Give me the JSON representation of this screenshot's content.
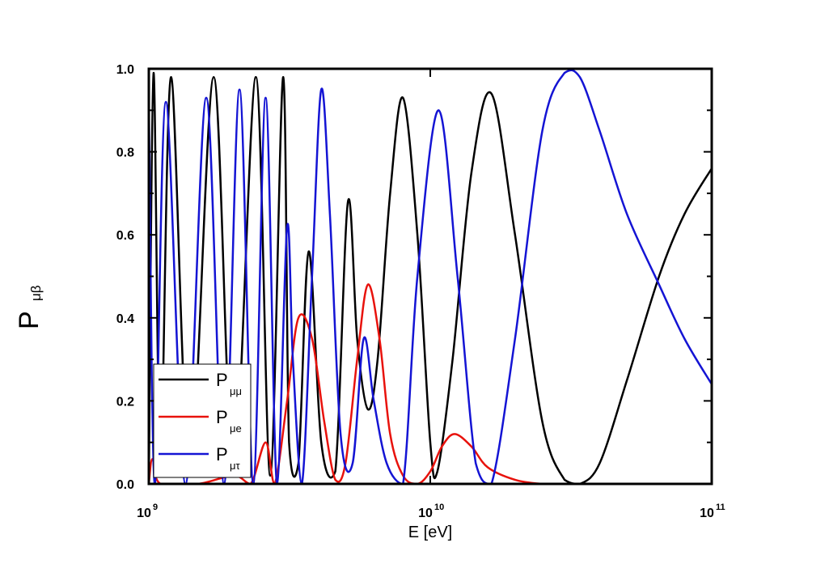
{
  "chart_data": {
    "type": "line",
    "title": "",
    "xlabel": "E [eV]",
    "ylabel": {
      "main": "P",
      "sub": "μβ"
    },
    "xscale": "log",
    "xlim": [
      1000000000.0,
      100000000000.0
    ],
    "ylim": [
      0,
      1
    ],
    "x_ticks": [
      {
        "value": 1000000000.0,
        "base": "10",
        "exp": "9"
      },
      {
        "value": 10000000000.0,
        "base": "10",
        "exp": "10"
      },
      {
        "value": 100000000000.0,
        "base": "10",
        "exp": "11"
      }
    ],
    "y_ticks": [
      {
        "value": 0.0,
        "label": "0.0"
      },
      {
        "value": 0.2,
        "label": "0.2"
      },
      {
        "value": 0.4,
        "label": "0.4"
      },
      {
        "value": 0.6,
        "label": "0.6"
      },
      {
        "value": 0.8,
        "label": "0.8"
      },
      {
        "value": 1.0,
        "label": "1.0"
      }
    ],
    "grid": false,
    "legend_position": "bottom-left",
    "series": [
      {
        "name": {
          "main": "P",
          "sub": "μμ"
        },
        "color": "#000000",
        "x": [
          1000000000.0,
          1040000000.0,
          1100000000.0,
          1200000000.0,
          1400000000.0,
          1700000000.0,
          2000000000.0,
          2400000000.0,
          2700000000.0,
          3000000000.0,
          3150000000.0,
          3400000000.0,
          3700000000.0,
          4100000000.0,
          4600000000.0,
          5100000000.0,
          5500000000.0,
          6000000000.0,
          6500000000.0,
          7200000000.0,
          8000000000.0,
          9000000000.0,
          10000000000.0,
          10600000000.0,
          12000000000.0,
          14000000000.0,
          16500000000.0,
          20000000000.0,
          25000000000.0,
          30000000000.0,
          34000000000.0,
          40000000000.0,
          50000000000.0,
          65000000000.0,
          80000000000.0,
          100000000000.0
        ],
        "y": [
          0.0,
          0.99,
          0.05,
          0.98,
          0.02,
          0.98,
          0.02,
          0.98,
          0.02,
          0.98,
          0.1,
          0.05,
          0.56,
          0.1,
          0.03,
          0.68,
          0.35,
          0.18,
          0.3,
          0.7,
          0.93,
          0.6,
          0.1,
          0.03,
          0.3,
          0.75,
          0.94,
          0.6,
          0.15,
          0.01,
          0.0,
          0.05,
          0.25,
          0.5,
          0.65,
          0.76
        ]
      },
      {
        "name": {
          "main": "P",
          "sub": "μe"
        },
        "color": "#e8120c",
        "x": [
          1000000000.0,
          1030000000.0,
          1100000000.0,
          1500000000.0,
          2000000000.0,
          2300000000.0,
          2600000000.0,
          2800000000.0,
          3100000000.0,
          3400000000.0,
          3800000000.0,
          4200000000.0,
          4600000000.0,
          5000000000.0,
          5500000000.0,
          6000000000.0,
          6600000000.0,
          7200000000.0,
          8000000000.0,
          9000000000.0,
          10000000000.0,
          11000000000.0,
          12200000000.0,
          14000000000.0,
          16000000000.0,
          20000000000.0,
          25000000000.0,
          30000000000.0,
          40000000000.0,
          60000000000.0,
          100000000000.0
        ],
        "y": [
          0.0,
          0.06,
          0.0,
          0.0,
          0.02,
          0.0,
          0.1,
          0.0,
          0.2,
          0.4,
          0.35,
          0.15,
          0.01,
          0.05,
          0.3,
          0.48,
          0.35,
          0.12,
          0.02,
          0.0,
          0.03,
          0.09,
          0.12,
          0.09,
          0.04,
          0.01,
          0.0,
          0.0,
          0.0,
          0.0,
          0.0
        ]
      },
      {
        "name": {
          "main": "P",
          "sub": "μτ"
        },
        "color": "#1414d4",
        "x": [
          1000000000.0,
          1050000000.0,
          1150000000.0,
          1350000000.0,
          1600000000.0,
          1850000000.0,
          2100000000.0,
          2350000000.0,
          2600000000.0,
          2850000000.0,
          3100000000.0,
          3250000000.0,
          3500000000.0,
          3800000000.0,
          4100000000.0,
          4400000000.0,
          4800000000.0,
          5300000000.0,
          5800000000.0,
          6300000000.0,
          7000000000.0,
          8000000000.0,
          9000000000.0,
          10700000000.0,
          12500000000.0,
          14500000000.0,
          16500000000.0,
          20000000000.0,
          25000000000.0,
          30000000000.0,
          34000000000.0,
          40000000000.0,
          50000000000.0,
          65000000000.0,
          80000000000.0,
          100000000000.0
        ],
        "y": [
          0.92,
          0.0,
          0.92,
          0.0,
          0.93,
          0.0,
          0.95,
          0.0,
          0.93,
          0.0,
          0.62,
          0.3,
          0.0,
          0.5,
          0.95,
          0.65,
          0.12,
          0.05,
          0.35,
          0.2,
          0.05,
          0.0,
          0.5,
          0.9,
          0.5,
          0.05,
          0.0,
          0.35,
          0.85,
          0.99,
          0.98,
          0.85,
          0.65,
          0.48,
          0.35,
          0.24
        ]
      }
    ]
  }
}
